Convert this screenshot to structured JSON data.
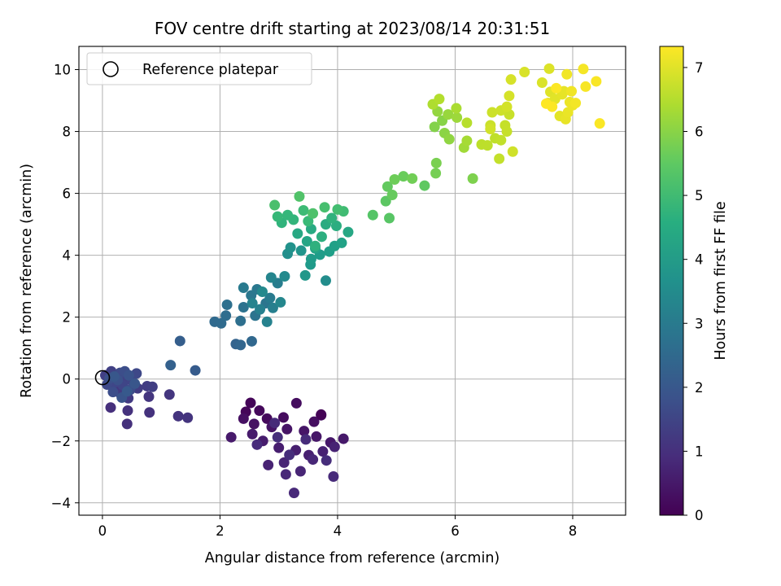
{
  "chart_data": {
    "type": "scatter",
    "title": "FOV centre drift starting at 2023/08/14 20:31:51",
    "xlabel": "Angular distance from reference (arcmin)",
    "ylabel": "Rotation from reference (arcmin)",
    "xlim": [
      -0.4,
      8.9
    ],
    "ylim": [
      -4.4,
      10.75
    ],
    "xticks": [
      "0",
      "2",
      "4",
      "6",
      "8"
    ],
    "yticks": [
      "−4",
      "−2",
      "0",
      "2",
      "4",
      "6",
      "8",
      "10"
    ],
    "grid": true,
    "colormap": "viridis",
    "colorbar": {
      "label": "Hours from first FF file",
      "range": [
        0,
        7.33
      ],
      "ticks": [
        "0",
        "1",
        "2",
        "3",
        "4",
        "5",
        "6",
        "7"
      ]
    },
    "legend": {
      "position": "top-left",
      "entries": [
        {
          "label": "Reference platepar",
          "marker": "open-circle"
        }
      ]
    },
    "reference_point": {
      "x": 0,
      "y": 0
    },
    "points": [
      {
        "x": 2.52,
        "y": -0.77,
        "h": 0.08
      },
      {
        "x": 2.44,
        "y": -1.06,
        "h": 0.12
      },
      {
        "x": 2.67,
        "y": -1.02,
        "h": 0.15
      },
      {
        "x": 2.8,
        "y": -1.28,
        "h": 0.18
      },
      {
        "x": 3.08,
        "y": -1.24,
        "h": 0.22
      },
      {
        "x": 3.3,
        "y": -0.78,
        "h": 0.25
      },
      {
        "x": 3.6,
        "y": -1.38,
        "h": 0.28
      },
      {
        "x": 3.72,
        "y": -1.17,
        "h": 0.3
      },
      {
        "x": 2.4,
        "y": -1.28,
        "h": 0.32
      },
      {
        "x": 2.58,
        "y": -1.45,
        "h": 0.35
      },
      {
        "x": 2.88,
        "y": -1.55,
        "h": 0.38
      },
      {
        "x": 3.14,
        "y": -1.62,
        "h": 0.4
      },
      {
        "x": 3.43,
        "y": -1.68,
        "h": 0.42
      },
      {
        "x": 3.64,
        "y": -1.86,
        "h": 0.45
      },
      {
        "x": 3.88,
        "y": -2.05,
        "h": 0.47
      },
      {
        "x": 4.1,
        "y": -1.93,
        "h": 0.5
      },
      {
        "x": 2.19,
        "y": -1.88,
        "h": 0.52
      },
      {
        "x": 2.55,
        "y": -1.78,
        "h": 0.55
      },
      {
        "x": 2.73,
        "y": -2.0,
        "h": 0.57
      },
      {
        "x": 3.0,
        "y": -2.22,
        "h": 0.6
      },
      {
        "x": 3.29,
        "y": -2.3,
        "h": 0.62
      },
      {
        "x": 3.51,
        "y": -2.46,
        "h": 0.65
      },
      {
        "x": 3.75,
        "y": -2.34,
        "h": 0.67
      },
      {
        "x": 3.95,
        "y": -2.19,
        "h": 0.7
      },
      {
        "x": 2.82,
        "y": -2.78,
        "h": 0.72
      },
      {
        "x": 3.09,
        "y": -2.7,
        "h": 0.75
      },
      {
        "x": 3.37,
        "y": -2.98,
        "h": 0.77
      },
      {
        "x": 3.58,
        "y": -2.6,
        "h": 0.8
      },
      {
        "x": 3.12,
        "y": -3.08,
        "h": 0.82
      },
      {
        "x": 3.26,
        "y": -3.68,
        "h": 0.84
      },
      {
        "x": 3.93,
        "y": -3.15,
        "h": 0.86
      },
      {
        "x": 2.93,
        "y": -1.42,
        "h": 0.88
      },
      {
        "x": 2.63,
        "y": -2.12,
        "h": 0.9
      },
      {
        "x": 3.46,
        "y": -1.95,
        "h": 0.92
      },
      {
        "x": 3.81,
        "y": -2.63,
        "h": 0.94
      },
      {
        "x": 3.18,
        "y": -2.45,
        "h": 0.96
      },
      {
        "x": 2.98,
        "y": -1.88,
        "h": 0.98
      },
      {
        "x": 0.14,
        "y": -0.92,
        "h": 1.0
      },
      {
        "x": 0.42,
        "y": -1.45,
        "h": 1.03
      },
      {
        "x": 0.43,
        "y": -1.02,
        "h": 1.05
      },
      {
        "x": 0.8,
        "y": -1.08,
        "h": 1.07
      },
      {
        "x": 1.29,
        "y": -1.2,
        "h": 1.1
      },
      {
        "x": 1.45,
        "y": -1.25,
        "h": 1.12
      },
      {
        "x": 1.14,
        "y": -0.5,
        "h": 1.15
      },
      {
        "x": 0.79,
        "y": -0.57,
        "h": 1.17
      },
      {
        "x": 0.1,
        "y": -0.13,
        "h": 1.2
      },
      {
        "x": 0.2,
        "y": -0.3,
        "h": 1.22
      },
      {
        "x": 0.31,
        "y": -0.48,
        "h": 1.25
      },
      {
        "x": 0.44,
        "y": -0.62,
        "h": 1.27
      },
      {
        "x": 0.6,
        "y": -0.3,
        "h": 1.3
      },
      {
        "x": 0.76,
        "y": -0.23,
        "h": 1.32
      },
      {
        "x": 0.85,
        "y": -0.25,
        "h": 1.35
      },
      {
        "x": 0.05,
        "y": 0.12,
        "h": 1.38
      },
      {
        "x": 0.15,
        "y": 0.25,
        "h": 1.4
      },
      {
        "x": 0.28,
        "y": 0.1,
        "h": 1.43
      },
      {
        "x": 0.4,
        "y": 0.05,
        "h": 1.46
      },
      {
        "x": 0.5,
        "y": -0.05,
        "h": 1.5
      },
      {
        "x": 0.35,
        "y": -0.2,
        "h": 1.53
      },
      {
        "x": 0.22,
        "y": -0.1,
        "h": 1.56
      },
      {
        "x": 0.58,
        "y": 0.18,
        "h": 1.6
      },
      {
        "x": 0.08,
        "y": -0.18,
        "h": 1.63
      },
      {
        "x": 0.3,
        "y": 0.2,
        "h": 1.66
      },
      {
        "x": 0.47,
        "y": -0.35,
        "h": 1.7
      },
      {
        "x": 0.18,
        "y": -0.42,
        "h": 1.73
      },
      {
        "x": 0.38,
        "y": 0.25,
        "h": 1.76
      },
      {
        "x": 0.12,
        "y": 0.02,
        "h": 1.8
      },
      {
        "x": 0.26,
        "y": -0.03,
        "h": 1.84
      },
      {
        "x": 0.45,
        "y": 0.12,
        "h": 1.88
      },
      {
        "x": 0.33,
        "y": -0.6,
        "h": 1.92
      },
      {
        "x": 0.55,
        "y": -0.15,
        "h": 1.96
      },
      {
        "x": 0.2,
        "y": 0.08,
        "h": 2.0
      },
      {
        "x": 0.42,
        "y": -0.4,
        "h": 2.05
      },
      {
        "x": 1.58,
        "y": 0.28,
        "h": 2.1
      },
      {
        "x": 1.32,
        "y": 1.23,
        "h": 2.18
      },
      {
        "x": 1.16,
        "y": 0.45,
        "h": 2.25
      },
      {
        "x": 2.27,
        "y": 1.13,
        "h": 2.32
      },
      {
        "x": 2.35,
        "y": 1.1,
        "h": 2.38
      },
      {
        "x": 2.54,
        "y": 1.22,
        "h": 2.45
      },
      {
        "x": 1.91,
        "y": 1.85,
        "h": 2.5
      },
      {
        "x": 2.02,
        "y": 1.8,
        "h": 2.55
      },
      {
        "x": 2.1,
        "y": 2.05,
        "h": 2.6
      },
      {
        "x": 2.35,
        "y": 1.88,
        "h": 2.65
      },
      {
        "x": 2.12,
        "y": 2.4,
        "h": 2.7
      },
      {
        "x": 2.4,
        "y": 2.32,
        "h": 2.75
      },
      {
        "x": 2.6,
        "y": 2.05,
        "h": 2.8
      },
      {
        "x": 2.78,
        "y": 2.45,
        "h": 2.85
      },
      {
        "x": 2.53,
        "y": 2.7,
        "h": 2.9
      },
      {
        "x": 2.63,
        "y": 2.9,
        "h": 2.95
      },
      {
        "x": 2.4,
        "y": 2.95,
        "h": 3.0
      },
      {
        "x": 2.85,
        "y": 2.62,
        "h": 3.05
      },
      {
        "x": 2.98,
        "y": 3.1,
        "h": 3.1
      },
      {
        "x": 2.9,
        "y": 2.3,
        "h": 3.15
      },
      {
        "x": 2.68,
        "y": 2.25,
        "h": 3.2
      },
      {
        "x": 2.8,
        "y": 1.85,
        "h": 3.25
      },
      {
        "x": 2.55,
        "y": 2.45,
        "h": 3.3
      },
      {
        "x": 2.87,
        "y": 3.28,
        "h": 3.35
      },
      {
        "x": 3.03,
        "y": 2.48,
        "h": 3.4
      },
      {
        "x": 2.72,
        "y": 2.82,
        "h": 3.45
      },
      {
        "x": 3.1,
        "y": 3.32,
        "h": 3.5
      },
      {
        "x": 3.8,
        "y": 3.18,
        "h": 3.58
      },
      {
        "x": 3.15,
        "y": 4.05,
        "h": 3.65
      },
      {
        "x": 3.2,
        "y": 4.25,
        "h": 3.72
      },
      {
        "x": 3.38,
        "y": 4.15,
        "h": 3.8
      },
      {
        "x": 3.45,
        "y": 3.35,
        "h": 3.88
      },
      {
        "x": 3.54,
        "y": 3.7,
        "h": 3.95
      },
      {
        "x": 3.55,
        "y": 3.88,
        "h": 4.0
      },
      {
        "x": 3.7,
        "y": 4.02,
        "h": 4.05
      },
      {
        "x": 3.86,
        "y": 4.12,
        "h": 4.1
      },
      {
        "x": 3.95,
        "y": 4.3,
        "h": 4.15
      },
      {
        "x": 4.07,
        "y": 4.4,
        "h": 4.2
      },
      {
        "x": 3.62,
        "y": 4.22,
        "h": 4.25
      },
      {
        "x": 3.48,
        "y": 4.45,
        "h": 4.3
      },
      {
        "x": 4.18,
        "y": 4.75,
        "h": 4.35
      },
      {
        "x": 3.32,
        "y": 4.7,
        "h": 4.4
      },
      {
        "x": 3.55,
        "y": 4.85,
        "h": 4.45
      },
      {
        "x": 3.8,
        "y": 5.0,
        "h": 4.5
      },
      {
        "x": 3.98,
        "y": 4.95,
        "h": 4.55
      },
      {
        "x": 3.73,
        "y": 4.6,
        "h": 4.6
      },
      {
        "x": 3.62,
        "y": 4.3,
        "h": 4.65
      },
      {
        "x": 3.9,
        "y": 5.2,
        "h": 4.7
      },
      {
        "x": 3.05,
        "y": 5.05,
        "h": 4.75
      },
      {
        "x": 3.25,
        "y": 5.15,
        "h": 4.8
      },
      {
        "x": 3.15,
        "y": 5.3,
        "h": 4.85
      },
      {
        "x": 2.98,
        "y": 5.25,
        "h": 4.9
      },
      {
        "x": 3.5,
        "y": 5.1,
        "h": 4.95
      },
      {
        "x": 3.42,
        "y": 5.45,
        "h": 5.0
      },
      {
        "x": 4.1,
        "y": 5.42,
        "h": 5.05
      },
      {
        "x": 4.0,
        "y": 5.48,
        "h": 5.1
      },
      {
        "x": 3.78,
        "y": 5.55,
        "h": 5.15
      },
      {
        "x": 2.93,
        "y": 5.62,
        "h": 5.2
      },
      {
        "x": 3.58,
        "y": 5.35,
        "h": 5.25
      },
      {
        "x": 3.35,
        "y": 5.9,
        "h": 5.3
      },
      {
        "x": 4.6,
        "y": 5.3,
        "h": 5.35
      },
      {
        "x": 4.88,
        "y": 5.2,
        "h": 5.4
      },
      {
        "x": 4.82,
        "y": 5.75,
        "h": 5.45
      },
      {
        "x": 5.48,
        "y": 6.25,
        "h": 5.5
      },
      {
        "x": 4.85,
        "y": 6.22,
        "h": 5.55
      },
      {
        "x": 4.93,
        "y": 5.95,
        "h": 5.6
      },
      {
        "x": 5.12,
        "y": 6.55,
        "h": 5.65
      },
      {
        "x": 4.97,
        "y": 6.45,
        "h": 5.7
      },
      {
        "x": 5.27,
        "y": 6.48,
        "h": 5.75
      },
      {
        "x": 5.67,
        "y": 6.65,
        "h": 5.8
      },
      {
        "x": 5.68,
        "y": 6.98,
        "h": 5.85
      },
      {
        "x": 6.3,
        "y": 6.48,
        "h": 5.9
      },
      {
        "x": 5.65,
        "y": 8.15,
        "h": 5.95
      },
      {
        "x": 5.78,
        "y": 8.35,
        "h": 6.0
      },
      {
        "x": 5.82,
        "y": 7.95,
        "h": 6.05
      },
      {
        "x": 5.9,
        "y": 7.75,
        "h": 6.1
      },
      {
        "x": 5.7,
        "y": 8.65,
        "h": 6.15
      },
      {
        "x": 5.88,
        "y": 8.55,
        "h": 6.2
      },
      {
        "x": 6.03,
        "y": 8.45,
        "h": 6.25
      },
      {
        "x": 6.15,
        "y": 7.48,
        "h": 6.3
      },
      {
        "x": 6.2,
        "y": 7.7,
        "h": 6.35
      },
      {
        "x": 6.02,
        "y": 8.75,
        "h": 6.4
      },
      {
        "x": 5.62,
        "y": 8.88,
        "h": 6.45
      },
      {
        "x": 5.73,
        "y": 9.05,
        "h": 6.5
      },
      {
        "x": 6.2,
        "y": 8.28,
        "h": 6.55
      },
      {
        "x": 6.45,
        "y": 7.58,
        "h": 6.6
      },
      {
        "x": 6.55,
        "y": 7.55,
        "h": 6.62
      },
      {
        "x": 6.68,
        "y": 7.78,
        "h": 6.64
      },
      {
        "x": 6.78,
        "y": 7.72,
        "h": 6.66
      },
      {
        "x": 6.75,
        "y": 7.12,
        "h": 6.68
      },
      {
        "x": 6.85,
        "y": 8.2,
        "h": 6.7
      },
      {
        "x": 6.88,
        "y": 8.0,
        "h": 6.72
      },
      {
        "x": 6.92,
        "y": 8.55,
        "h": 6.74
      },
      {
        "x": 6.6,
        "y": 8.2,
        "h": 6.76
      },
      {
        "x": 6.63,
        "y": 8.62,
        "h": 6.78
      },
      {
        "x": 6.78,
        "y": 8.68,
        "h": 6.8
      },
      {
        "x": 6.98,
        "y": 7.35,
        "h": 6.82
      },
      {
        "x": 6.6,
        "y": 8.08,
        "h": 6.84
      },
      {
        "x": 6.88,
        "y": 8.8,
        "h": 6.86
      },
      {
        "x": 6.92,
        "y": 9.15,
        "h": 6.88
      },
      {
        "x": 6.95,
        "y": 9.68,
        "h": 6.9
      },
      {
        "x": 7.18,
        "y": 9.92,
        "h": 6.92
      },
      {
        "x": 7.48,
        "y": 9.58,
        "h": 6.94
      },
      {
        "x": 7.6,
        "y": 10.03,
        "h": 6.96
      },
      {
        "x": 7.58,
        "y": 8.92,
        "h": 6.98
      },
      {
        "x": 7.62,
        "y": 9.28,
        "h": 7.0
      },
      {
        "x": 7.7,
        "y": 9.05,
        "h": 7.02
      },
      {
        "x": 7.78,
        "y": 8.5,
        "h": 7.04
      },
      {
        "x": 7.82,
        "y": 9.2,
        "h": 7.06
      },
      {
        "x": 7.85,
        "y": 9.3,
        "h": 7.08
      },
      {
        "x": 7.88,
        "y": 8.4,
        "h": 7.1
      },
      {
        "x": 7.92,
        "y": 8.62,
        "h": 7.12
      },
      {
        "x": 7.95,
        "y": 8.95,
        "h": 7.14
      },
      {
        "x": 8.0,
        "y": 8.85,
        "h": 7.16
      },
      {
        "x": 7.98,
        "y": 9.3,
        "h": 7.18
      },
      {
        "x": 7.9,
        "y": 9.85,
        "h": 7.2
      },
      {
        "x": 8.05,
        "y": 8.92,
        "h": 7.22
      },
      {
        "x": 8.18,
        "y": 10.02,
        "h": 7.24
      },
      {
        "x": 8.22,
        "y": 9.45,
        "h": 7.26
      },
      {
        "x": 8.4,
        "y": 9.62,
        "h": 7.28
      },
      {
        "x": 8.46,
        "y": 8.26,
        "h": 7.3
      },
      {
        "x": 7.65,
        "y": 8.8,
        "h": 7.31
      },
      {
        "x": 7.72,
        "y": 9.4,
        "h": 7.32
      },
      {
        "x": 7.55,
        "y": 8.9,
        "h": 7.33
      },
      {
        "x": 3.72,
        "y": -1.15,
        "h": 0.05
      }
    ]
  }
}
